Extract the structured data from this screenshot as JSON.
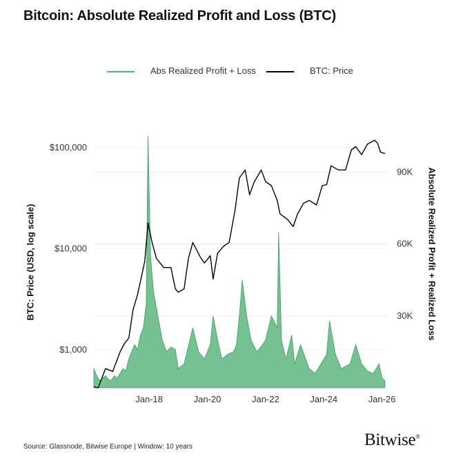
{
  "chart_data": {
    "type": "line",
    "title": "Bitcoin: Absolute Realized Profit and Loss (BTC)",
    "legend": [
      {
        "name": "Abs Realized Profit + Loss",
        "color": "#52b277"
      },
      {
        "name": "BTC: Price",
        "color": "#000000"
      }
    ],
    "legend_placement": "top-center",
    "x_ticks": [
      "Jan-18",
      "Jan-20",
      "Jan-22",
      "Jan-24",
      "Jan-26"
    ],
    "x_tick_years": [
      2018,
      2020,
      2022,
      2024,
      2026
    ],
    "x_range": [
      2016.1,
      2026.2
    ],
    "left_axis": {
      "label": "BTC: Price (USD, log scale)",
      "scale": "log",
      "range": [
        420,
        170000
      ],
      "ticks": [
        1000,
        10000,
        100000
      ],
      "tick_labels": [
        "$1,000",
        "$10,000",
        "$100,000"
      ]
    },
    "right_axis": {
      "label": "Absolute Realized Profit + Realized Loss",
      "range": [
        0,
        110000
      ],
      "ticks": [
        30000,
        60000,
        90000
      ],
      "tick_labels": [
        "30K",
        "60K",
        "90K"
      ]
    },
    "grid": "horizontal",
    "series": [
      {
        "name": "BTC: Price",
        "axis": "left",
        "color": "#000000",
        "x": [
          2016.1,
          2016.25,
          2016.5,
          2016.75,
          2017.0,
          2017.15,
          2017.3,
          2017.45,
          2017.6,
          2017.75,
          2017.85,
          2017.96,
          2018.1,
          2018.25,
          2018.5,
          2018.75,
          2018.9,
          2019.0,
          2019.2,
          2019.35,
          2019.5,
          2019.75,
          2019.9,
          2020.1,
          2020.2,
          2020.35,
          2020.55,
          2020.75,
          2020.95,
          2021.1,
          2021.3,
          2021.45,
          2021.6,
          2021.85,
          2022.0,
          2022.2,
          2022.4,
          2022.5,
          2022.75,
          2022.95,
          2023.1,
          2023.3,
          2023.5,
          2023.75,
          2023.95,
          2024.1,
          2024.25,
          2024.5,
          2024.75,
          2024.95,
          2025.1,
          2025.3,
          2025.5,
          2025.75,
          2025.85,
          2025.95,
          2026.1
        ],
        "y": [
          430,
          420,
          650,
          610,
          950,
          1150,
          1300,
          2500,
          3500,
          5500,
          7500,
          18000,
          11500,
          8000,
          6500,
          6500,
          4000,
          3700,
          4000,
          8000,
          11500,
          8300,
          7200,
          8500,
          5000,
          9000,
          10500,
          11500,
          24000,
          50000,
          60000,
          34000,
          45000,
          60000,
          46000,
          42000,
          30000,
          22000,
          19500,
          16500,
          22000,
          28000,
          30000,
          27000,
          42000,
          43000,
          66000,
          60000,
          60000,
          95000,
          102000,
          85000,
          108000,
          118000,
          110000,
          90000,
          87000
        ]
      },
      {
        "name": "Abs Realized Profit + Loss",
        "axis": "right",
        "color": "#52b277",
        "x": [
          2016.1,
          2016.2,
          2016.3,
          2016.4,
          2016.5,
          2016.6,
          2016.7,
          2016.8,
          2016.9,
          2017.0,
          2017.1,
          2017.2,
          2017.3,
          2017.4,
          2017.5,
          2017.6,
          2017.7,
          2017.8,
          2017.9,
          2017.96,
          2018.05,
          2018.15,
          2018.3,
          2018.45,
          2018.6,
          2018.75,
          2018.9,
          2019.0,
          2019.2,
          2019.4,
          2019.5,
          2019.7,
          2019.9,
          2020.1,
          2020.2,
          2020.35,
          2020.5,
          2020.7,
          2020.9,
          2021.0,
          2021.1,
          2021.2,
          2021.35,
          2021.5,
          2021.7,
          2021.9,
          2022.0,
          2022.2,
          2022.4,
          2022.45,
          2022.55,
          2022.7,
          2022.9,
          2023.0,
          2023.2,
          2023.5,
          2023.7,
          2023.9,
          2024.1,
          2024.2,
          2024.4,
          2024.6,
          2024.9,
          2025.1,
          2025.3,
          2025.5,
          2025.7,
          2025.9,
          2026.0,
          2026.1
        ],
        "y": [
          8000,
          5000,
          3000,
          4000,
          5000,
          3500,
          3000,
          5000,
          4000,
          6000,
          8000,
          7000,
          12000,
          15000,
          18000,
          16000,
          22000,
          25000,
          35000,
          105000,
          55000,
          40000,
          30000,
          20000,
          15000,
          17000,
          16000,
          8000,
          10000,
          20000,
          25000,
          15000,
          12000,
          18000,
          30000,
          20000,
          12000,
          14000,
          15000,
          18000,
          30000,
          45000,
          30000,
          20000,
          15000,
          18000,
          20000,
          30000,
          25000,
          65000,
          20000,
          12000,
          22000,
          10000,
          18000,
          8000,
          6000,
          10000,
          14000,
          28000,
          14000,
          8000,
          10000,
          18000,
          10000,
          7000,
          6000,
          10000,
          4000,
          3000
        ]
      }
    ]
  },
  "source_text": "Source: Glassnode, Bitwise Europe | Window: 10 years",
  "brand_text": "Bitwise",
  "brand_mark": "®"
}
